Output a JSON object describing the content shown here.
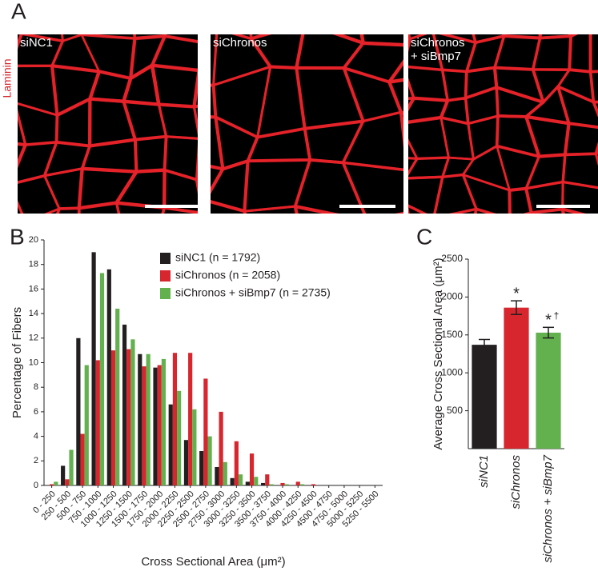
{
  "panel_a": {
    "label": "A",
    "stain": "Laminin",
    "images": [
      "siNC1",
      "siChronos",
      "siChronos + siBmp7"
    ]
  },
  "chart_data": [
    {
      "type": "bar",
      "panel_label": "B",
      "x_label": "Cross Sectional Area (μm²)",
      "y_label": "Percentage of Fibers",
      "categories": [
        "0 - 250",
        "250 - 500",
        "500 - 750",
        "750 - 1000",
        "1000 - 1250",
        "1250 - 1500",
        "1500 - 1750",
        "1750 - 2000",
        "2000 - 2250",
        "2250 - 2500",
        "2500 - 2750",
        "2750 - 3000",
        "3000 - 3250",
        "3250 - 3500",
        "3500 - 3750",
        "3750 - 4000",
        "4000 - 4250",
        "4250 - 4500",
        "4500 - 4750",
        "4750 - 5000",
        "5000 - 5250",
        "5250 - 5500"
      ],
      "series": [
        {
          "name": "siNC1 (n = 1792)",
          "color": "#231f20",
          "values": [
            0,
            1.6,
            12,
            19,
            17.6,
            13.1,
            10.7,
            9.6,
            6.6,
            3.7,
            2.8,
            1.5,
            0.6,
            0.3,
            0.2,
            0,
            0,
            0,
            0,
            0,
            0,
            0
          ]
        },
        {
          "name": "siChronos (n = 2058)",
          "color": "#d7262e",
          "values": [
            0.1,
            0.5,
            4.2,
            10.2,
            11,
            11.1,
            9.7,
            9.8,
            10.8,
            10.8,
            8.7,
            6,
            3.6,
            2.6,
            0.9,
            0.2,
            0.3,
            0.1,
            0,
            0,
            0,
            0
          ]
        },
        {
          "name": "siChronos + siBmp7 (n = 2735)",
          "color": "#62b14e",
          "values": [
            0.3,
            2.9,
            9.8,
            17.3,
            14.4,
            11.9,
            10.7,
            10.3,
            7.7,
            6.2,
            4,
            1.9,
            0.9,
            0.7,
            0.1,
            0.1,
            0.1,
            0,
            0,
            0,
            0,
            0
          ]
        }
      ],
      "ylim": [
        0,
        20
      ],
      "yticks": [
        0,
        2,
        4,
        6,
        8,
        10,
        12,
        14,
        16,
        18,
        20
      ],
      "legend": "upper center"
    },
    {
      "type": "bar",
      "panel_label": "C",
      "y_label": "Average Cross Sectional Area (μm²)",
      "categories": [
        "siNC1",
        "siChronos",
        "siChronos + siBmp7"
      ],
      "values": [
        1370,
        1860,
        1530
      ],
      "errors": [
        70,
        90,
        70
      ],
      "colors": [
        "#231f20",
        "#d7262e",
        "#62b14e"
      ],
      "ylim": [
        0,
        2500
      ],
      "yticks": [
        500,
        1000,
        1500,
        2000,
        2500
      ],
      "annotations": [
        {
          "text": "*",
          "category": "siChronos"
        },
        {
          "text": "*",
          "category": "siChronos + siBmp7"
        },
        {
          "text": "†",
          "category": "siChronos + siBmp7"
        }
      ]
    }
  ]
}
